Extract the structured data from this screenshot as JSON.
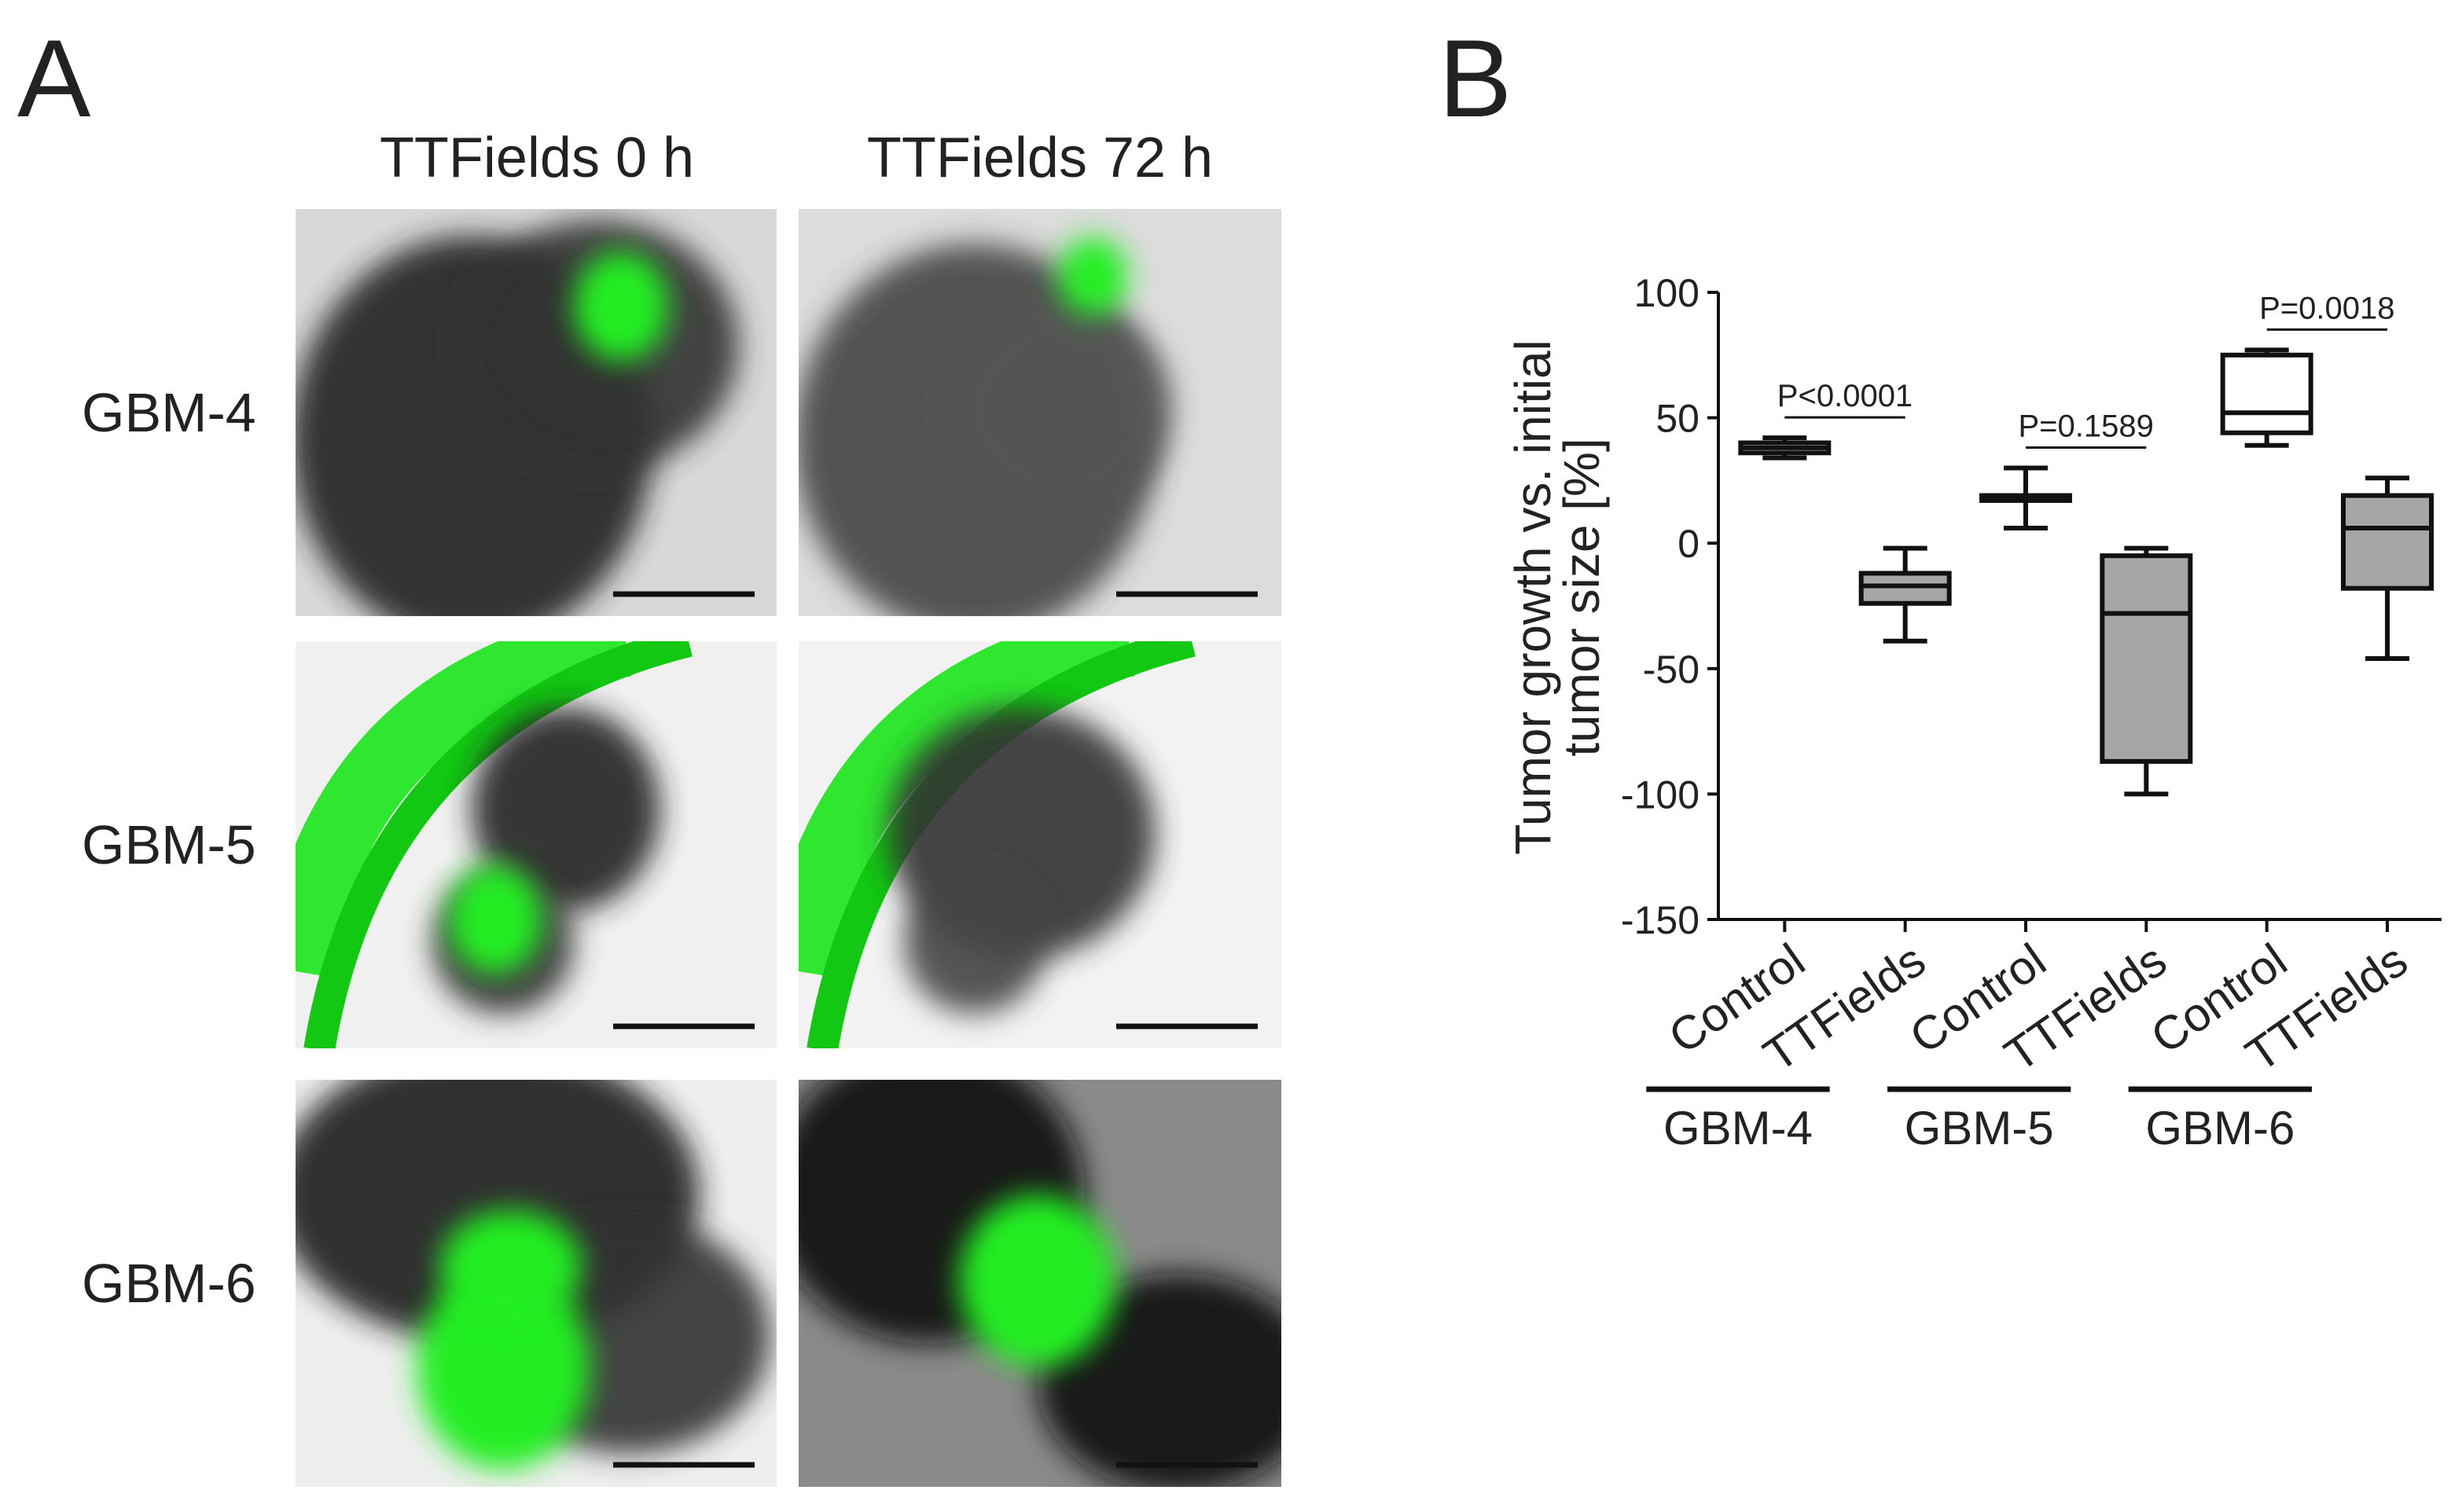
{
  "panel_a": {
    "label": "A",
    "columns": [
      "TTFields 0 h",
      "TTFields 72 h"
    ],
    "rows": [
      "GBM-4",
      "GBM-5",
      "GBM-6"
    ]
  },
  "panel_b_label": "B",
  "chart_data": {
    "type": "box",
    "ylabel": [
      "Tumor growth vs. initial",
      "tumor size [%]"
    ],
    "categories": [
      "Control",
      "TTFields",
      "Control",
      "TTFields",
      "Control",
      "TTFields"
    ],
    "groups": [
      "GBM-4",
      "GBM-5",
      "GBM-6"
    ],
    "min": [
      34,
      -39,
      6,
      -100,
      39,
      -46
    ],
    "q1": [
      36,
      -24,
      17,
      -87,
      44,
      -18
    ],
    "median": [
      38,
      -17,
      18,
      -28,
      52,
      6
    ],
    "q3": [
      40,
      -12,
      19,
      -5,
      75,
      19
    ],
    "max": [
      42,
      -2,
      30,
      -2,
      77,
      26
    ],
    "box_colors": [
      "#ffffff",
      "#a6a6a6",
      "#ffffff",
      "#a6a6a6",
      "#ffffff",
      "#a6a6a6"
    ],
    "annotations": [
      "P<0.0001",
      "P=0.1589",
      "P=0.0018"
    ],
    "ylim": [
      -150,
      100
    ],
    "yticks": [
      -150,
      -100,
      -50,
      0,
      50,
      100
    ]
  }
}
